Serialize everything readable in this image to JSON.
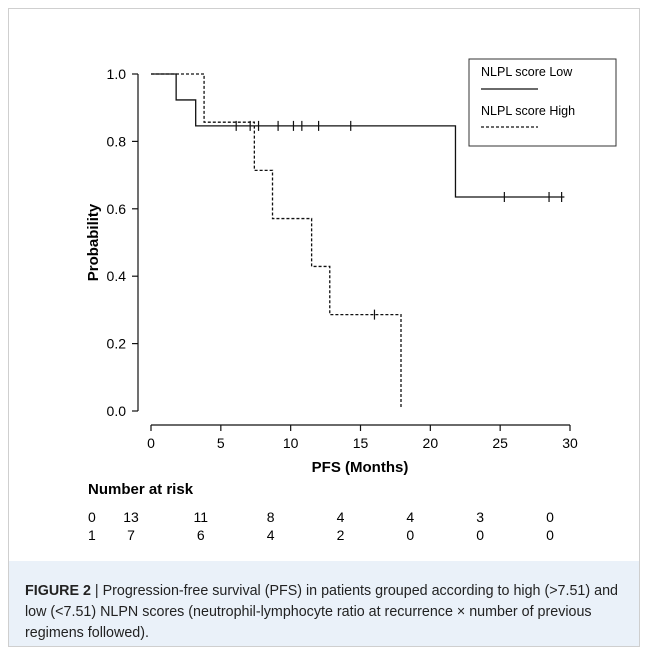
{
  "chart_data": {
    "type": "line",
    "subtype": "kaplan-meier",
    "xlabel": "PFS (Months)",
    "ylabel": "Probability",
    "xlim": [
      0,
      30
    ],
    "ylim": [
      0,
      1.0
    ],
    "x_ticks": [
      "0",
      "5",
      "10",
      "15",
      "20",
      "25",
      "30"
    ],
    "y_ticks": [
      "0.0",
      "0.2",
      "0.4",
      "0.6",
      "0.8",
      "1.0"
    ],
    "legend_position": "top-right",
    "grid": false,
    "series": [
      {
        "name": "NLPL score Low",
        "style": "solid",
        "color": "#111111",
        "steps": [
          [
            0,
            1.0
          ],
          [
            1.8,
            0.923
          ],
          [
            3.2,
            0.846
          ],
          [
            21.8,
            0.635
          ]
        ],
        "end_x": 29.6,
        "censored": [
          [
            6.1,
            0.846
          ],
          [
            7.1,
            0.846
          ],
          [
            7.7,
            0.846
          ],
          [
            9.1,
            0.846
          ],
          [
            10.2,
            0.846
          ],
          [
            10.8,
            0.846
          ],
          [
            12.0,
            0.846
          ],
          [
            14.3,
            0.846
          ],
          [
            25.3,
            0.635
          ],
          [
            28.5,
            0.635
          ],
          [
            29.4,
            0.635
          ]
        ]
      },
      {
        "name": "NLPL score High",
        "style": "dashed",
        "color": "#111111",
        "steps": [
          [
            0,
            1.0
          ],
          [
            3.8,
            0.857
          ],
          [
            7.4,
            0.714
          ],
          [
            8.7,
            0.571
          ],
          [
            11.5,
            0.429
          ],
          [
            12.8,
            0.286
          ],
          [
            17.9,
            0.01
          ]
        ],
        "end_x": 17.9,
        "censored": [
          [
            16.0,
            0.286
          ]
        ]
      }
    ],
    "risk_table": {
      "title": "Number at risk",
      "rows": [
        {
          "label": "0",
          "values": [
            "13",
            "11",
            "8",
            "4",
            "4",
            "3",
            "0"
          ]
        },
        {
          "label": "1",
          "values": [
            "7",
            "6",
            "4",
            "2",
            "0",
            "0",
            "0"
          ]
        }
      ]
    }
  },
  "caption": {
    "label": "FIGURE 2",
    "separator": " | ",
    "text": "Progression-free survival (PFS) in patients grouped according to high (>7.51) and low (<7.51) NLPN scores (neutrophil-lymphocyte ratio at recurrence × number of previous regimens followed)."
  }
}
